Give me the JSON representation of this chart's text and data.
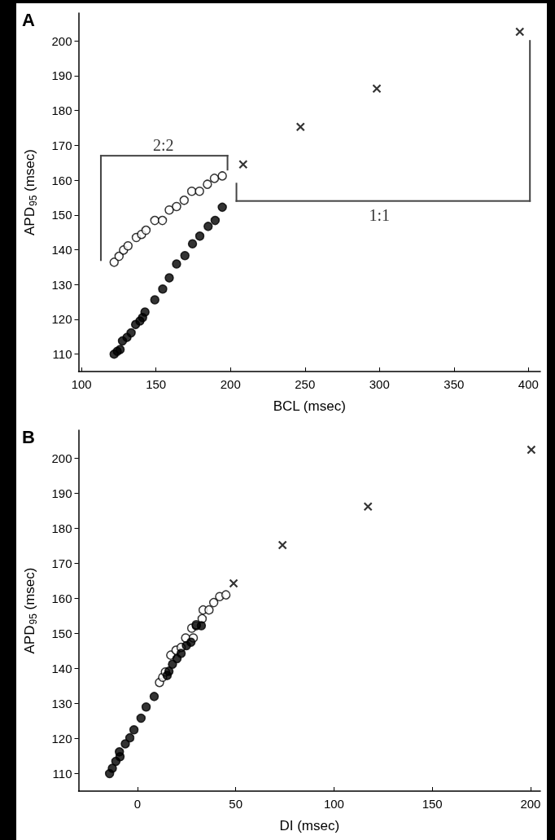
{
  "chart_data": [
    {
      "type": "scatter",
      "title": "A",
      "xlabel": "BCL (msec)",
      "ylabel": "APD$_{95}$ (msec)",
      "xlim": [
        98,
        408
      ],
      "xticks": [
        100,
        150,
        200,
        250,
        300,
        350,
        400
      ],
      "ylim": [
        105,
        208
      ],
      "yticks": [
        110,
        120,
        130,
        140,
        150,
        160,
        170,
        180,
        190,
        200
      ],
      "grid": false,
      "annotations": [
        "2:2",
        "1:1"
      ],
      "series": [
        {
          "color": "#ffffff",
          "marker": "circle",
          "x": [
            121.9,
            125.2,
            128.2,
            131.2,
            136.8,
            140.3,
            143.3,
            149.2,
            154.3,
            158.9,
            163.8,
            168.9,
            174,
            179.2,
            184.5,
            189.2,
            194.5
          ],
          "values": [
            136.4,
            138.1,
            139.9,
            141.1,
            143.5,
            144.4,
            145.6,
            148.4,
            148.4,
            151.4,
            152.4,
            154.2,
            156.8,
            156.8,
            158.8,
            160.5,
            161.2
          ]
        },
        {
          "color": "#000000",
          "marker": "circle",
          "x": [
            121.9,
            124,
            125.9,
            127.5,
            130.5,
            133.3,
            136.3,
            139.2,
            141,
            142.6,
            149.2,
            154.5,
            158.9,
            163.8,
            169.4,
            174.5,
            179.4,
            185,
            189.7,
            194.5
          ],
          "values": [
            110,
            110.8,
            111.3,
            113.8,
            114.8,
            116.1,
            118.5,
            119.5,
            120.5,
            122.1,
            125.6,
            128.7,
            131.9,
            135.9,
            138.3,
            141.7,
            143.9,
            146.7,
            148.4,
            152.2
          ]
        },
        {
          "color": "#000000",
          "marker": "cross",
          "x": [
            208.5,
            247,
            298.2,
            394.2
          ],
          "values": [
            164.5,
            175.3,
            186.3,
            202.6
          ]
        }
      ]
    },
    {
      "type": "scatter",
      "title": "B",
      "xlabel": "DI (msec)",
      "ylabel": "APD$_{95}$ (msec)",
      "xlim": [
        -30,
        205
      ],
      "xticks": [
        0,
        50,
        100,
        150,
        200
      ],
      "ylim": [
        105,
        208
      ],
      "yticks": [
        110,
        120,
        130,
        140,
        150,
        160,
        170,
        180,
        190,
        200
      ],
      "grid": false,
      "series": [
        {
          "color": "#ffffff",
          "marker": "circle",
          "x": [
            11.2,
            12.8,
            14.2,
            16.9,
            19.6,
            22.2,
            24.5,
            28.4,
            27.6,
            29.9,
            32.9,
            33.4,
            36.4,
            38.8,
            41.8,
            45
          ],
          "values": [
            136,
            137.5,
            139,
            143.8,
            145.2,
            146,
            148.7,
            148.7,
            151.5,
            152.5,
            154.2,
            156.7,
            156.7,
            158.8,
            160.5,
            161
          ]
        },
        {
          "color": "#000000",
          "marker": "circle",
          "x": [
            -14.2,
            -12.8,
            -11,
            -9.2,
            -8.9,
            -6.2,
            -3.9,
            -1.8,
            1.8,
            4.4,
            8.5,
            15.1,
            16,
            17.8,
            20.1,
            22.2,
            24.9,
            27.2,
            29.9,
            32.5
          ],
          "values": [
            110,
            111.5,
            113.5,
            116.2,
            114.8,
            118.5,
            120.2,
            122.5,
            125.8,
            129,
            132,
            138,
            139.2,
            141.2,
            142.8,
            144.3,
            146.5,
            147.5,
            152.2,
            152.2
          ]
        },
        {
          "color": "#000000",
          "marker": "cross",
          "x": [
            48.9,
            73.8,
            117.3,
            200.4
          ],
          "values": [
            164.3,
            175.2,
            186.2,
            202.4
          ]
        }
      ]
    }
  ]
}
